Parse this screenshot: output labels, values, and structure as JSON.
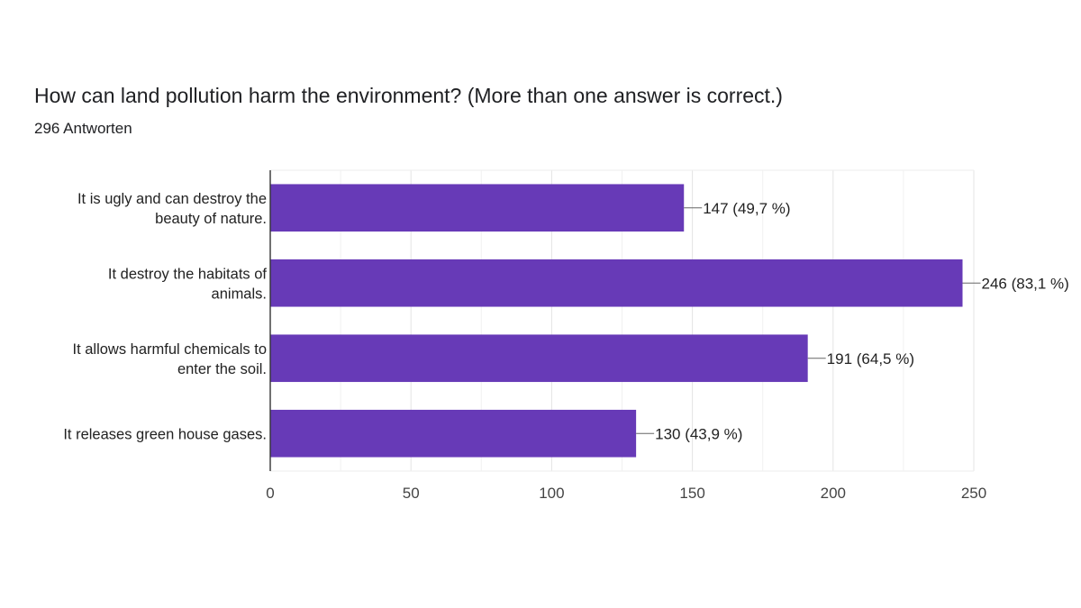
{
  "header": {
    "title": "How can land pollution harm the environment? (More than one answer is correct.)",
    "responses": "296 Antworten"
  },
  "chart_data": {
    "type": "bar",
    "orientation": "horizontal",
    "title": "How can land pollution harm the environment? (More than one answer is correct.)",
    "subtitle": "296 Antworten",
    "categories": [
      [
        "It is ugly and can destroy the",
        "beauty of nature."
      ],
      [
        "It destroy the habitats of",
        "animals."
      ],
      [
        "It allows harmful chemicals to",
        "enter the soil."
      ],
      [
        "It releases green house gases."
      ]
    ],
    "values": [
      147,
      246,
      191,
      130
    ],
    "data_labels": [
      "147 (49,7 %)",
      "246 (83,1 %)",
      "191 (64,5 %)",
      "130 (43,9 %)"
    ],
    "xlim": [
      0,
      250
    ],
    "xticks": [
      0,
      50,
      100,
      150,
      200,
      250
    ],
    "grid": true,
    "bar_color": "#673ab7"
  }
}
